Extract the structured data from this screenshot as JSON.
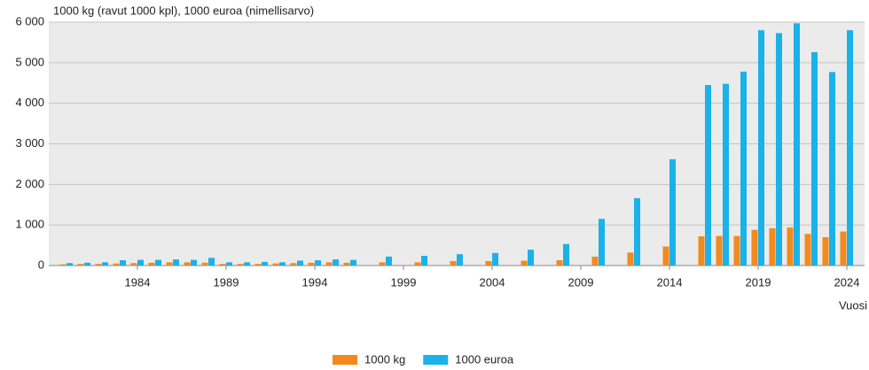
{
  "chart_data": {
    "type": "bar",
    "title": "1000 kg (ravut 1000 kpl), 1000 euroa (nimellisarvo)",
    "x_label": "Vuosi",
    "x": [
      1980,
      1981,
      1982,
      1983,
      1984,
      1985,
      1986,
      1987,
      1988,
      1989,
      1990,
      1991,
      1992,
      1993,
      1994,
      1995,
      1996,
      1998,
      2000,
      2002,
      2004,
      2006,
      2008,
      2010,
      2012,
      2014,
      2016,
      2017,
      2018,
      2019,
      2020,
      2021,
      2022,
      2023,
      2024
    ],
    "series": [
      {
        "name": "1000 kg",
        "color": "#f28a1e",
        "values": [
          30,
          40,
          40,
          50,
          60,
          70,
          80,
          80,
          70,
          40,
          40,
          40,
          50,
          60,
          70,
          80,
          70,
          80,
          80,
          110,
          110,
          120,
          130,
          220,
          320,
          470,
          720,
          730,
          730,
          880,
          920,
          940,
          780,
          700,
          840
        ]
      },
      {
        "name": "1000 euroa",
        "color": "#1ab2e8",
        "values": [
          60,
          70,
          80,
          130,
          140,
          140,
          150,
          140,
          190,
          80,
          80,
          90,
          80,
          120,
          130,
          150,
          140,
          220,
          240,
          280,
          310,
          390,
          530,
          1150,
          1660,
          2620,
          4450,
          4480,
          4780,
          5800,
          5730,
          5970,
          5260,
          4770,
          5800
        ]
      }
    ],
    "xlim": [
      1979,
      2025
    ],
    "xticks": [
      1984,
      1989,
      1994,
      1999,
      2004,
      2009,
      2014,
      2019,
      2024
    ],
    "ylim": [
      0,
      6000
    ],
    "yticks": [
      0,
      {
        "value": 1000,
        "label": "1 000"
      },
      {
        "value": 2000,
        "label": "2 000"
      },
      {
        "value": 3000,
        "label": "3 000"
      },
      {
        "value": 4000,
        "label": "4 000"
      },
      {
        "value": 5000,
        "label": "5 000"
      },
      {
        "value": 6000,
        "label": "6 000"
      }
    ],
    "grid": true
  }
}
